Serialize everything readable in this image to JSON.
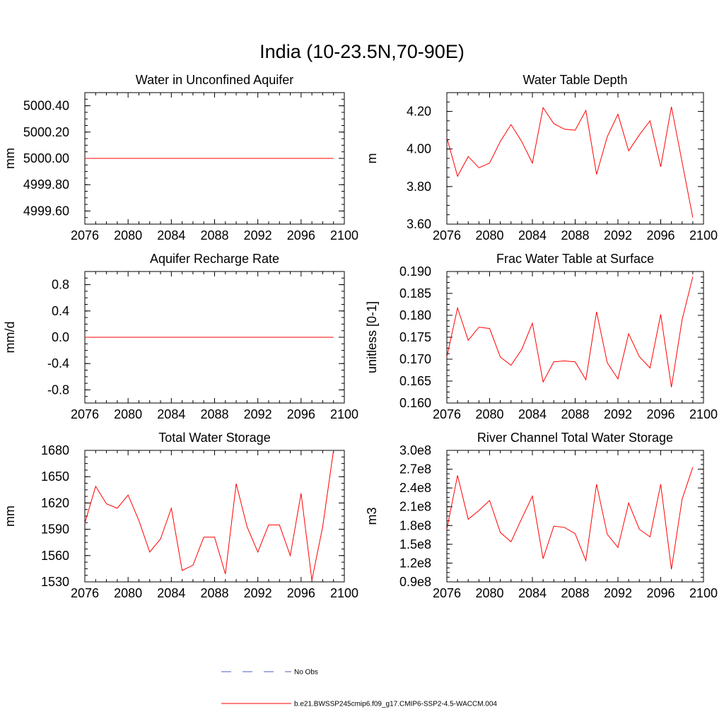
{
  "figure": {
    "title": "India (10-23.5N,70-90E)"
  },
  "legend": {
    "obs_label": "No Obs",
    "model_label": "b.e21.BWSSP245cmip6.f09_g17.CMIP6-SSP2-4.5-WACCM.004",
    "obs_color": "#4c5fc4",
    "model_color": "#ff0000"
  },
  "chart_data": [
    {
      "type": "line",
      "title": "Water in Unconfined Aquifer",
      "ylabel": "mm",
      "xlim": [
        2076,
        2100
      ],
      "ylim": [
        4999.5,
        5000.5
      ],
      "x_ticks": [
        "2076",
        "2080",
        "2084",
        "2088",
        "2092",
        "2096",
        "2100"
      ],
      "y_ticks": [
        {
          "v": 4999.6,
          "label": "4999.60"
        },
        {
          "v": 4999.8,
          "label": "4999.80"
        },
        {
          "v": 5000.0,
          "label": "5000.00"
        },
        {
          "v": 5000.2,
          "label": "5000.20"
        },
        {
          "v": 5000.4,
          "label": "5000.40"
        }
      ],
      "series": [
        {
          "x": [
            2076,
            2077,
            2078,
            2079,
            2080,
            2081,
            2082,
            2083,
            2084,
            2085,
            2086,
            2087,
            2088,
            2089,
            2090,
            2091,
            2092,
            2093,
            2094,
            2095,
            2096,
            2097,
            2098,
            2099
          ],
          "y": [
            5000,
            5000,
            5000,
            5000,
            5000,
            5000,
            5000,
            5000,
            5000,
            5000,
            5000,
            5000,
            5000,
            5000,
            5000,
            5000,
            5000,
            5000,
            5000,
            5000,
            5000,
            5000,
            5000,
            5000
          ]
        }
      ]
    },
    {
      "type": "line",
      "title": "Water Table Depth",
      "ylabel": "m",
      "xlim": [
        2076,
        2100
      ],
      "ylim": [
        3.6,
        4.3
      ],
      "x_ticks": [
        "2076",
        "2080",
        "2084",
        "2088",
        "2092",
        "2096",
        "2100"
      ],
      "y_ticks": [
        {
          "v": 3.6,
          "label": "3.60"
        },
        {
          "v": 3.8,
          "label": "3.80"
        },
        {
          "v": 4.0,
          "label": "4.00"
        },
        {
          "v": 4.2,
          "label": "4.20"
        }
      ],
      "series": [
        {
          "x": [
            2076,
            2077,
            2078,
            2079,
            2080,
            2081,
            2082,
            2083,
            2084,
            2085,
            2086,
            2087,
            2088,
            2089,
            2090,
            2091,
            2092,
            2093,
            2094,
            2095,
            2096,
            2097,
            2098,
            2099
          ],
          "y": [
            4.06,
            3.855,
            3.96,
            3.9,
            3.925,
            4.04,
            4.13,
            4.04,
            3.925,
            4.22,
            4.135,
            4.105,
            4.1,
            4.205,
            3.865,
            4.065,
            4.185,
            3.99,
            4.075,
            4.15,
            3.905,
            4.225,
            3.93,
            3.635
          ]
        }
      ]
    },
    {
      "type": "line",
      "title": "Aquifer Recharge Rate",
      "ylabel": "mm/d",
      "xlim": [
        2076,
        2100
      ],
      "ylim": [
        -1.0,
        1.0
      ],
      "x_ticks": [
        "2076",
        "2080",
        "2084",
        "2088",
        "2092",
        "2096",
        "2100"
      ],
      "y_ticks": [
        {
          "v": -0.8,
          "label": "-0.8"
        },
        {
          "v": -0.4,
          "label": "-0.4"
        },
        {
          "v": 0.0,
          "label": "0.0"
        },
        {
          "v": 0.4,
          "label": "0.4"
        },
        {
          "v": 0.8,
          "label": "0.8"
        }
      ],
      "series": [
        {
          "x": [
            2076,
            2077,
            2078,
            2079,
            2080,
            2081,
            2082,
            2083,
            2084,
            2085,
            2086,
            2087,
            2088,
            2089,
            2090,
            2091,
            2092,
            2093,
            2094,
            2095,
            2096,
            2097,
            2098,
            2099
          ],
          "y": [
            0,
            0,
            0,
            0,
            0,
            0,
            0,
            0,
            0,
            0,
            0,
            0,
            0,
            0,
            0,
            0,
            0,
            0,
            0,
            0,
            0,
            0,
            0,
            0
          ]
        }
      ]
    },
    {
      "type": "line",
      "title": "Frac Water Table at Surface",
      "ylabel": "unitless [0-1]",
      "xlim": [
        2076,
        2100
      ],
      "ylim": [
        0.16,
        0.19
      ],
      "x_ticks": [
        "2076",
        "2080",
        "2084",
        "2088",
        "2092",
        "2096",
        "2100"
      ],
      "y_ticks": [
        {
          "v": 0.16,
          "label": "0.160"
        },
        {
          "v": 0.165,
          "label": "0.165"
        },
        {
          "v": 0.17,
          "label": "0.170"
        },
        {
          "v": 0.175,
          "label": "0.175"
        },
        {
          "v": 0.18,
          "label": "0.180"
        },
        {
          "v": 0.185,
          "label": "0.185"
        },
        {
          "v": 0.19,
          "label": "0.190"
        }
      ],
      "series": [
        {
          "x": [
            2076,
            2077,
            2078,
            2079,
            2080,
            2081,
            2082,
            2083,
            2084,
            2085,
            2086,
            2087,
            2088,
            2089,
            2090,
            2091,
            2092,
            2093,
            2094,
            2095,
            2096,
            2097,
            2098,
            2099
          ],
          "y": [
            0.1705,
            0.1817,
            0.1743,
            0.1773,
            0.177,
            0.1705,
            0.1686,
            0.1722,
            0.1782,
            0.1648,
            0.1694,
            0.1696,
            0.1694,
            0.1653,
            0.1808,
            0.1692,
            0.1655,
            0.1758,
            0.1706,
            0.168,
            0.1802,
            0.1636,
            0.179,
            0.1888
          ]
        }
      ]
    },
    {
      "type": "line",
      "title": "Total Water Storage",
      "ylabel": "mm",
      "xlim": [
        2076,
        2100
      ],
      "ylim": [
        1530,
        1680
      ],
      "x_ticks": [
        "2076",
        "2080",
        "2084",
        "2088",
        "2092",
        "2096",
        "2100"
      ],
      "y_ticks": [
        {
          "v": 1530,
          "label": "1530"
        },
        {
          "v": 1560,
          "label": "1560"
        },
        {
          "v": 1590,
          "label": "1590"
        },
        {
          "v": 1620,
          "label": "1620"
        },
        {
          "v": 1650,
          "label": "1650"
        },
        {
          "v": 1680,
          "label": "1680"
        }
      ],
      "series": [
        {
          "x": [
            2076,
            2077,
            2078,
            2079,
            2080,
            2081,
            2082,
            2083,
            2084,
            2085,
            2086,
            2087,
            2088,
            2089,
            2090,
            2091,
            2092,
            2093,
            2094,
            2095,
            2096,
            2097,
            2098,
            2099
          ],
          "y": [
            1597,
            1639,
            1619,
            1614,
            1629,
            1600,
            1564,
            1579,
            1614,
            1543,
            1549,
            1581,
            1581,
            1539,
            1642,
            1593,
            1564,
            1595,
            1595,
            1560,
            1631,
            1532,
            1593,
            1680
          ]
        }
      ]
    },
    {
      "type": "line",
      "title": "River Channel Total Water Storage",
      "ylabel": "m3",
      "xlim": [
        2076,
        2100
      ],
      "ylim": [
        0.9,
        3.0
      ],
      "x_ticks": [
        "2076",
        "2080",
        "2084",
        "2088",
        "2092",
        "2096",
        "2100"
      ],
      "y_ticks": [
        {
          "v": 0.9,
          "label": "0.9e8"
        },
        {
          "v": 1.2,
          "label": "1.2e8"
        },
        {
          "v": 1.5,
          "label": "1.5e8"
        },
        {
          "v": 1.8,
          "label": "1.8e8"
        },
        {
          "v": 2.1,
          "label": "2.1e8"
        },
        {
          "v": 2.4,
          "label": "2.4e8"
        },
        {
          "v": 2.7,
          "label": "2.7e8"
        },
        {
          "v": 3.0,
          "label": "3.0e8"
        }
      ],
      "series": [
        {
          "x": [
            2076,
            2077,
            2078,
            2079,
            2080,
            2081,
            2082,
            2083,
            2084,
            2085,
            2086,
            2087,
            2088,
            2089,
            2090,
            2091,
            2092,
            2093,
            2094,
            2095,
            2096,
            2097,
            2098,
            2099
          ],
          "y": [
            1.74,
            2.6,
            1.9,
            2.04,
            2.2,
            1.69,
            1.54,
            1.91,
            2.27,
            1.27,
            1.79,
            1.77,
            1.67,
            1.24,
            2.46,
            1.66,
            1.45,
            2.16,
            1.74,
            1.62,
            2.46,
            1.1,
            2.22,
            2.73
          ]
        }
      ]
    }
  ]
}
